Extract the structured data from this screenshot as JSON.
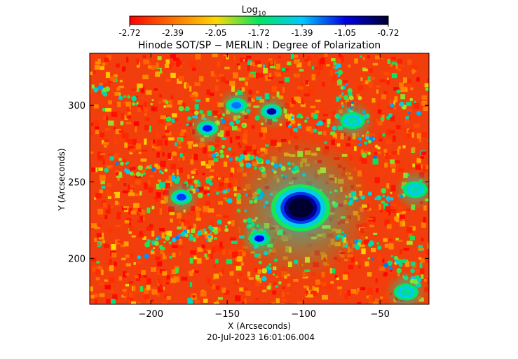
{
  "chart_data": {
    "type": "heatmap",
    "title": "Hinode SOT/SP − MERLIN : Degree of Polarization",
    "xlabel": "X (Arcseconds)",
    "ylabel": "Y (Arcseconds)",
    "timestamp": "20-Jul-2023 16:01:06.004",
    "xlim": [
      -240,
      -18
    ],
    "ylim": [
      170,
      334
    ],
    "xticks": [
      -200,
      -150,
      -100,
      -50
    ],
    "yticks": [
      200,
      250,
      300
    ],
    "colorbar": {
      "label_base": "Log",
      "label_sub": "10",
      "ticks": [
        "-2.72",
        "-2.39",
        "-2.05",
        "-1.72",
        "-1.39",
        "-1.05",
        "-0.72"
      ],
      "range": [
        -2.72,
        -0.72
      ],
      "stops": [
        "#ff0000",
        "#ff7000",
        "#ffd800",
        "#00e860",
        "#00c8ff",
        "#0000e8",
        "#000030"
      ]
    },
    "features": [
      {
        "name": "sunspot",
        "x": -102,
        "y": 233,
        "value": -0.72
      },
      {
        "name": "pore",
        "x": -121,
        "y": 296,
        "value": -0.9
      },
      {
        "name": "pore",
        "x": -163,
        "y": 285,
        "value": -1.1
      },
      {
        "name": "pore",
        "x": -180,
        "y": 240,
        "value": -1.15
      },
      {
        "name": "pore",
        "x": -129,
        "y": 213,
        "value": -1.05
      },
      {
        "name": "pore",
        "x": -144,
        "y": 300,
        "value": -1.25
      },
      {
        "name": "plage",
        "x": -68,
        "y": 290,
        "value": -1.6
      },
      {
        "name": "plage",
        "x": -27,
        "y": 245,
        "value": -1.55
      },
      {
        "name": "plage",
        "x": -33,
        "y": 178,
        "value": -1.6
      }
    ]
  }
}
